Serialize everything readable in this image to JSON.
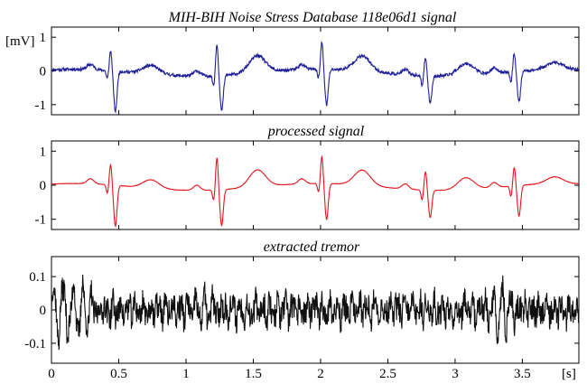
{
  "chart_data": [
    {
      "type": "line",
      "title": "MIH-BIH Noise Stress Database 118e06d1 signal",
      "ylabel": "[mV]",
      "xlim": [
        0,
        3.92
      ],
      "ylim": [
        -1.3,
        1.3
      ],
      "yticks": [
        {
          "value": 1,
          "label": "1"
        },
        {
          "value": 0,
          "label": "0"
        },
        {
          "value": -1,
          "label": "-1"
        }
      ],
      "series": [
        {
          "color": "#1f1f9a",
          "noise": 0.045,
          "seed": 11
        }
      ]
    },
    {
      "type": "line",
      "title": "processed signal",
      "ylabel": "",
      "xlim": [
        0,
        3.92
      ],
      "ylim": [
        -1.3,
        1.3
      ],
      "yticks": [
        {
          "value": 1,
          "label": "1"
        },
        {
          "value": 0,
          "label": "0"
        },
        {
          "value": -1,
          "label": "-1"
        }
      ],
      "series": [
        {
          "color": "#e8141e",
          "noise": 0.006,
          "seed": 23
        }
      ]
    },
    {
      "type": "line",
      "title": "extracted tremor",
      "xlabel": "[s]",
      "xlim": [
        0,
        3.92
      ],
      "ylim": [
        -0.16,
        0.16
      ],
      "yticks": [
        {
          "value": 0.1,
          "label": "0.1"
        },
        {
          "value": 0,
          "label": "0"
        },
        {
          "value": -0.1,
          "label": "-0.1"
        }
      ],
      "xticks": [
        {
          "value": 0,
          "label": "0"
        },
        {
          "value": 0.5,
          "label": "0.5"
        },
        {
          "value": 1,
          "label": "1"
        },
        {
          "value": 1.5,
          "label": "1.5"
        },
        {
          "value": 2,
          "label": "2"
        },
        {
          "value": 2.5,
          "label": "2.5"
        },
        {
          "value": 3,
          "label": "3"
        },
        {
          "value": 3.5,
          "label": "3.5"
        }
      ],
      "series": [
        {
          "color": "#111111",
          "noise": 0.04,
          "seed": 37
        }
      ]
    }
  ],
  "ecg_beats": [
    {
      "t": 0.44,
      "q": -0.25,
      "r": 0.6,
      "s": -1.2,
      "tw": 0.25
    },
    {
      "t": 1.23,
      "q": -0.3,
      "r": 0.95,
      "s": -1.05,
      "tw": 0.5
    },
    {
      "t": 2.01,
      "q": -0.25,
      "r": 0.8,
      "s": -1.05,
      "tw": 0.45
    },
    {
      "t": 2.78,
      "q": -0.3,
      "r": 0.55,
      "s": -0.8,
      "tw": 0.35
    },
    {
      "t": 3.44,
      "q": -0.3,
      "r": 0.55,
      "s": -0.9,
      "tw": 0.2
    }
  ]
}
